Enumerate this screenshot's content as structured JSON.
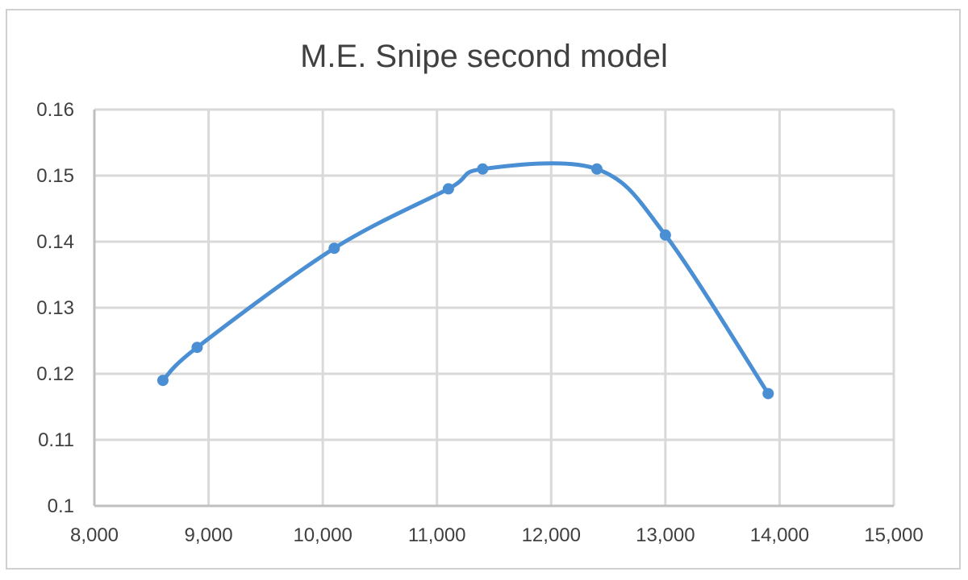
{
  "chart_data": {
    "type": "scatter",
    "title": "M.E. Snipe second model",
    "xlabel": "",
    "ylabel": "",
    "xlim": [
      8000,
      15000
    ],
    "ylim": [
      0.1,
      0.16
    ],
    "x_ticks": [
      "8,000",
      "9,000",
      "10,000",
      "11,000",
      "12,000",
      "13,000",
      "14,000",
      "15,000"
    ],
    "y_ticks": [
      "0.1",
      "0.11",
      "0.12",
      "0.13",
      "0.14",
      "0.15",
      "0.16"
    ],
    "grid": true,
    "legend": "none",
    "smooth_line": true,
    "series": [
      {
        "color": "#4a8fd4",
        "x": [
          8600,
          8900,
          10100,
          11100,
          11400,
          12400,
          13000,
          13900
        ],
        "y": [
          0.119,
          0.124,
          0.139,
          0.148,
          0.151,
          0.151,
          0.141,
          0.117
        ]
      }
    ]
  }
}
